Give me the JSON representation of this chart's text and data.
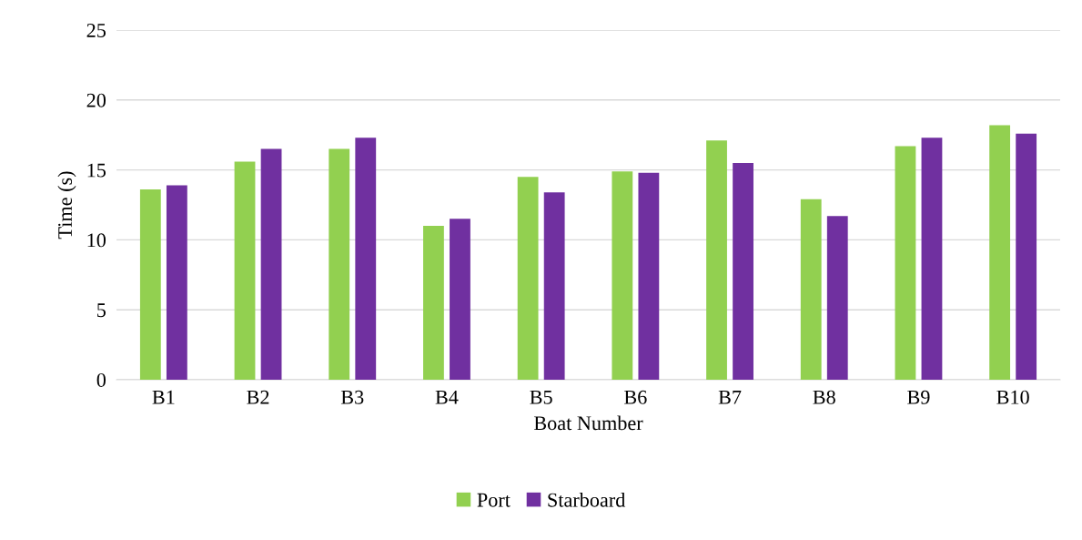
{
  "chart_data": {
    "type": "bar",
    "xlabel": "Boat Number",
    "ylabel": "Time (s)",
    "categories": [
      "B1",
      "B2",
      "B3",
      "B4",
      "B5",
      "B6",
      "B7",
      "B8",
      "B9",
      "B10"
    ],
    "series": [
      {
        "name": "Port",
        "color": "#92d050",
        "values": [
          13.6,
          15.6,
          16.5,
          11.0,
          14.5,
          14.9,
          17.1,
          12.9,
          16.7,
          18.2
        ]
      },
      {
        "name": "Starboard",
        "color": "#7030a0",
        "values": [
          13.9,
          16.5,
          17.3,
          11.5,
          13.4,
          14.8,
          15.5,
          11.7,
          17.3,
          17.6
        ]
      }
    ],
    "ylim": [
      0,
      25
    ],
    "yticks": [
      0,
      5,
      10,
      15,
      20,
      25
    ],
    "grid": "y",
    "legend": "bottom"
  }
}
